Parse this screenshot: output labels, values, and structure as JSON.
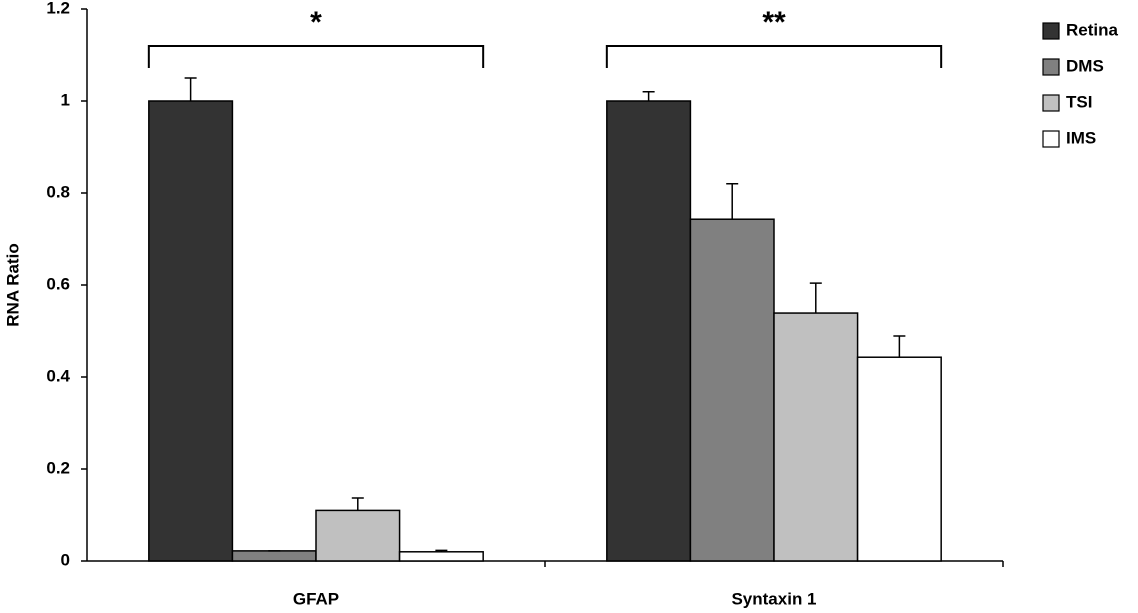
{
  "chart_data": {
    "type": "bar",
    "y_label": "RNA Ratio",
    "categories": [
      "GFAP",
      "Syntaxin 1"
    ],
    "series": [
      {
        "name": "Retina",
        "color": "#333333",
        "values": [
          1.0,
          1.0
        ],
        "errors": [
          0.05,
          0.02
        ]
      },
      {
        "name": "DMS",
        "color": "#808080",
        "values": [
          0.022,
          0.743
        ],
        "errors": [
          0,
          0.077
        ]
      },
      {
        "name": "TSI",
        "color": "#c0c0c0",
        "values": [
          0.11,
          0.539
        ],
        "errors": [
          0.027,
          0.065
        ]
      },
      {
        "name": "IMS",
        "color": "#ffffff",
        "values": [
          0.02,
          0.443
        ],
        "errors": [
          0.003,
          0.046
        ]
      }
    ],
    "annotations": [
      "*",
      "**"
    ],
    "ylim": [
      0,
      1.2
    ],
    "yticks": [
      0,
      0.2,
      0.4,
      0.6,
      0.8,
      1,
      1.2
    ],
    "legend": "top-right"
  }
}
